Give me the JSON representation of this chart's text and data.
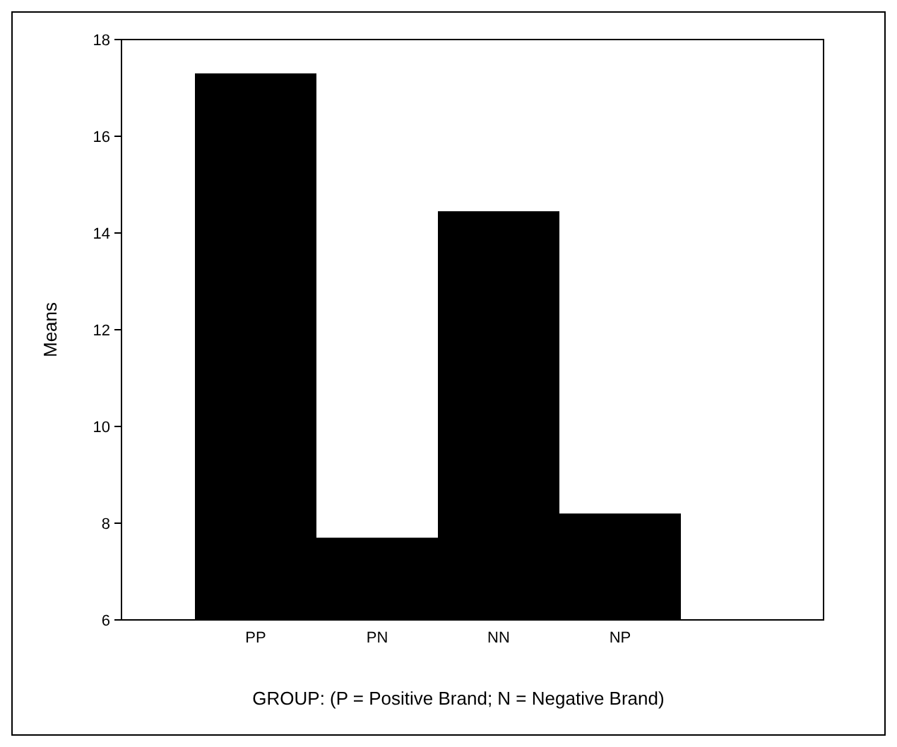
{
  "chart_data": {
    "type": "bar",
    "xlabel": "GROUP: (P = Positive Brand; N = Negative Brand)",
    "ylabel": "Means",
    "categories": [
      "PP",
      "PN",
      "NN",
      "NP"
    ],
    "values": [
      17.3,
      7.7,
      14.45,
      8.2
    ],
    "color": "#000000",
    "ylim": [
      6,
      18
    ],
    "yticks": [
      6,
      8,
      10,
      12,
      14,
      16,
      18
    ],
    "grid": false
  }
}
